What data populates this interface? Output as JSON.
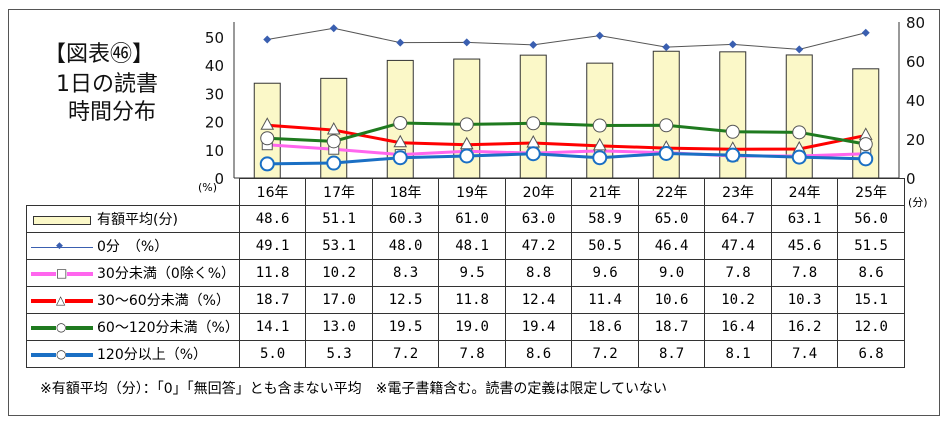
{
  "title": {
    "line1": "【図表㊻】",
    "line2": "1日の読書",
    "line3": "時間分布"
  },
  "footnote": "※有額平均（分）：「0」「無回答」とも含まない平均　※電子書籍含む。読書の定義は限定していない",
  "chart_data": {
    "type": "bar+line",
    "categories": [
      "16年",
      "17年",
      "18年",
      "19年",
      "20年",
      "21年",
      "22年",
      "23年",
      "24年",
      "25年"
    ],
    "left_axis": {
      "label": "(%)",
      "ylim": [
        0,
        50
      ],
      "ticks": [
        "0",
        "10",
        "20",
        "30",
        "40",
        "50"
      ]
    },
    "right_axis": {
      "label": "(分)",
      "ylim": [
        0,
        80
      ],
      "ticks": [
        "0",
        "20",
        "40",
        "60",
        "80"
      ]
    },
    "series": [
      {
        "name": "有額平均(分)",
        "kind": "bar",
        "axis": "right",
        "color": "#fbf8c8",
        "values": [
          48.6,
          51.1,
          60.3,
          61.0,
          63.0,
          58.9,
          65.0,
          64.7,
          63.1,
          56.0
        ],
        "labels": [
          "48.6",
          "51.1",
          "60.3",
          "61.0",
          "63.0",
          "58.9",
          "65.0",
          "64.7",
          "63.1",
          "56.0"
        ]
      },
      {
        "name": "0分　（%）",
        "kind": "line",
        "axis": "left",
        "color": "#3a5fb0",
        "marker": "diamond",
        "values": [
          49.1,
          53.1,
          48.0,
          48.1,
          47.2,
          50.5,
          46.4,
          47.4,
          45.6,
          51.5
        ],
        "labels": [
          "49.1",
          "53.1",
          "48.0",
          "48.1",
          "47.2",
          "50.5",
          "46.4",
          "47.4",
          "45.6",
          "51.5"
        ]
      },
      {
        "name": "30分未満（0除く%）",
        "kind": "line",
        "axis": "left",
        "color": "#ff66ee",
        "marker": "square",
        "values": [
          11.8,
          10.2,
          8.3,
          9.5,
          8.8,
          9.6,
          9.0,
          7.8,
          7.8,
          8.6
        ],
        "labels": [
          "11.8",
          "10.2",
          "8.3",
          "9.5",
          "8.8",
          "9.6",
          "9.0",
          "7.8",
          "7.8",
          "8.6"
        ]
      },
      {
        "name": "30～60分未満（%）",
        "kind": "line",
        "axis": "left",
        "color": "#ff0000",
        "marker": "triangle",
        "values": [
          18.7,
          17.0,
          12.5,
          11.8,
          12.4,
          11.4,
          10.6,
          10.2,
          10.3,
          15.1
        ],
        "labels": [
          "18.7",
          "17.0",
          "12.5",
          "11.8",
          "12.4",
          "11.4",
          "10.6",
          "10.2",
          "10.3",
          "15.1"
        ]
      },
      {
        "name": "60～120分未満（%）",
        "kind": "line",
        "axis": "left",
        "color": "#1f7a1f",
        "marker": "circle",
        "values": [
          14.1,
          13.0,
          19.5,
          19.0,
          19.4,
          18.6,
          18.7,
          16.4,
          16.2,
          12.0
        ],
        "labels": [
          "14.1",
          "13.0",
          "19.5",
          "19.0",
          "19.4",
          "18.6",
          "18.7",
          "16.4",
          "16.2",
          "12.0"
        ]
      },
      {
        "name": "120分以上（%）",
        "kind": "line",
        "axis": "left",
        "color": "#1a6fc4",
        "marker": "circle-blue",
        "values": [
          5.0,
          5.3,
          7.2,
          7.8,
          8.6,
          7.2,
          8.7,
          8.1,
          7.4,
          6.8
        ],
        "labels": [
          "5.0",
          "5.3",
          "7.2",
          "7.8",
          "8.6",
          "7.2",
          "8.7",
          "8.1",
          "7.4",
          "6.8"
        ]
      }
    ]
  }
}
